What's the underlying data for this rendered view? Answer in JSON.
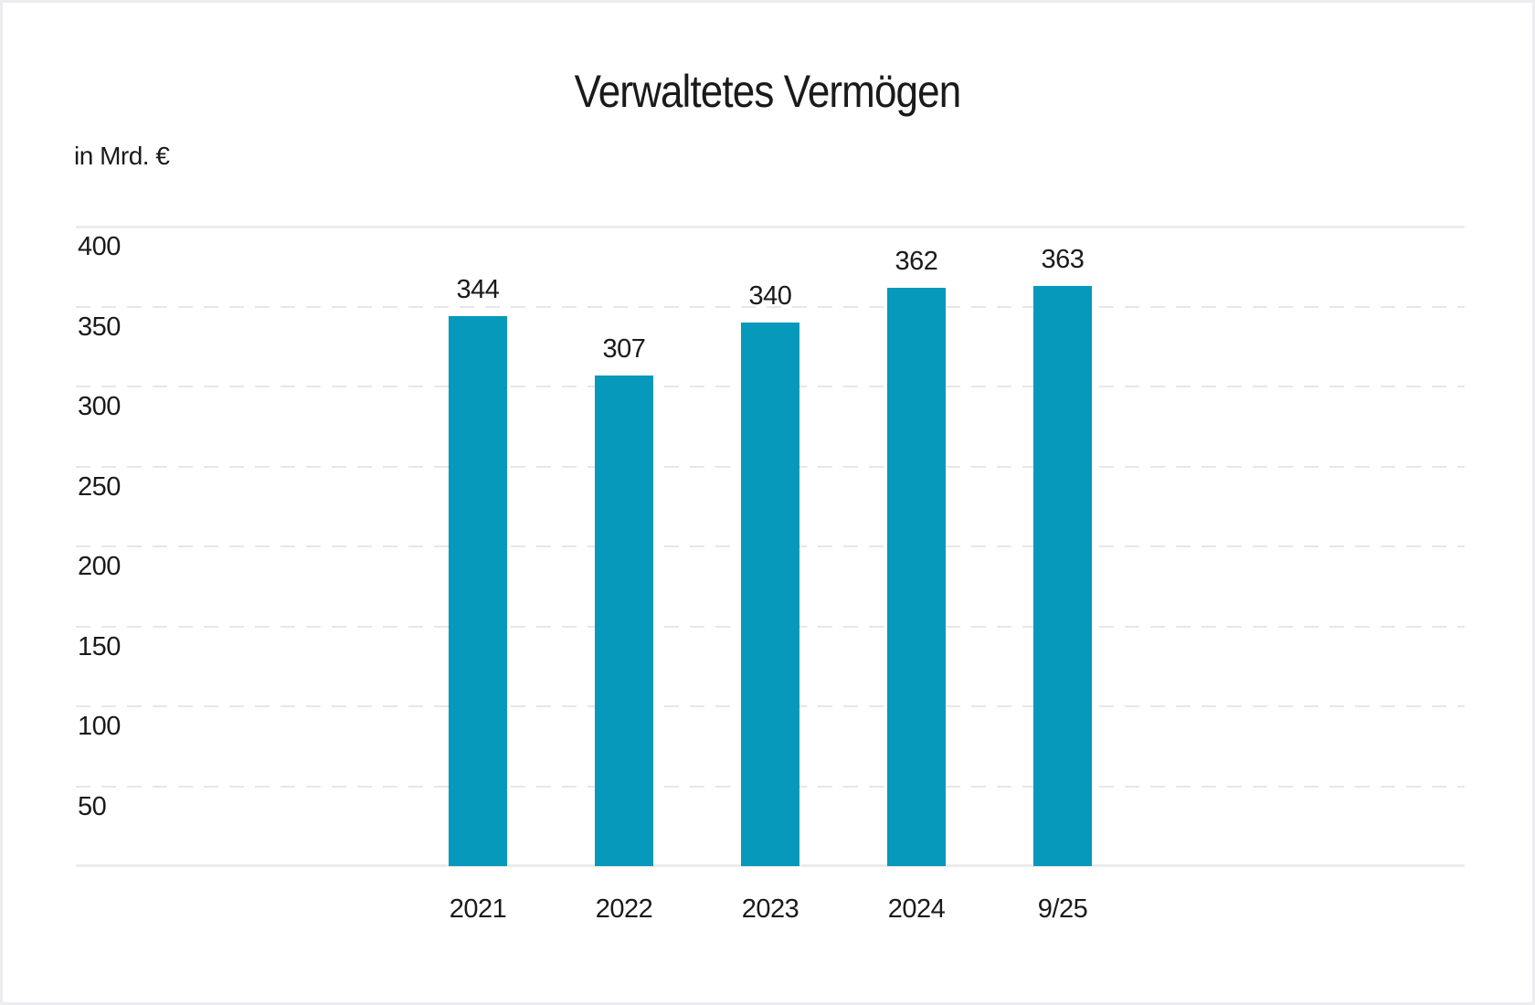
{
  "chart_data": {
    "type": "bar",
    "title": "Verwaltetes Vermögen",
    "unit_label": "in Mrd. €",
    "categories": [
      "2021",
      "2022",
      "2023",
      "2024",
      "9/25"
    ],
    "values": [
      344,
      307,
      340,
      362,
      363
    ],
    "value_labels": [
      "344",
      "307",
      "340",
      "362",
      "363"
    ],
    "ylim": [
      0,
      400
    ],
    "yticks": [
      400,
      350,
      300,
      250,
      200,
      150,
      100,
      50
    ],
    "grid": "horizontal gridlines; dashed at intermediate ticks, solid at 0 and 400; no vertical grid",
    "legend": "none",
    "colors": {
      "bar": "#0699BB",
      "text": "#1A1A1A",
      "grid_dashed": "#E7E7E7",
      "grid_solid": "#ECECEC",
      "card_border": "#ECEDF0",
      "background": "#FFFFFF"
    }
  }
}
